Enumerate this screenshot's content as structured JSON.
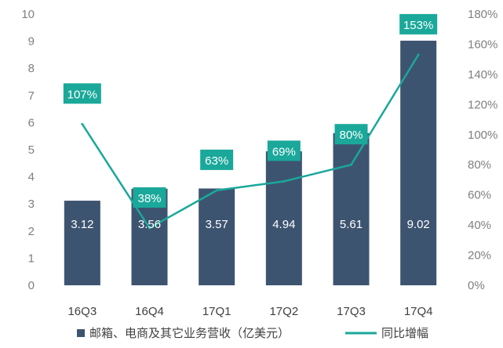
{
  "chart_data": {
    "type": "bar",
    "categories": [
      "16Q3",
      "16Q4",
      "17Q1",
      "17Q2",
      "17Q3",
      "17Q4"
    ],
    "series": [
      {
        "name": "邮箱、电商及其它业务营收（亿美元）",
        "type": "bar",
        "axis": "left",
        "values": [
          3.12,
          3.56,
          3.57,
          4.94,
          5.61,
          9.02
        ],
        "labels": [
          "3.12",
          "3.56",
          "3.57",
          "4.94",
          "5.61",
          "9.02"
        ]
      },
      {
        "name": "同比增幅",
        "type": "line",
        "axis": "right",
        "values": [
          107,
          38,
          63,
          69,
          80,
          153
        ],
        "labels": [
          "107%",
          "38%",
          "63%",
          "69%",
          "80%",
          "153%"
        ]
      }
    ],
    "left_axis": {
      "ylim": [
        0,
        10
      ],
      "ticks": [
        "0",
        "1",
        "2",
        "3",
        "4",
        "5",
        "6",
        "7",
        "8",
        "9",
        "10"
      ]
    },
    "right_axis": {
      "ylim": [
        0,
        180
      ],
      "ticks": [
        "0%",
        "20%",
        "40%",
        "60%",
        "80%",
        "100%",
        "120%",
        "140%",
        "160%",
        "180%"
      ]
    },
    "legend": "bottom",
    "grid": false,
    "colors": {
      "bar": "#3d5470",
      "line": "#1aa89a",
      "label_box": "#1aa89a"
    }
  }
}
